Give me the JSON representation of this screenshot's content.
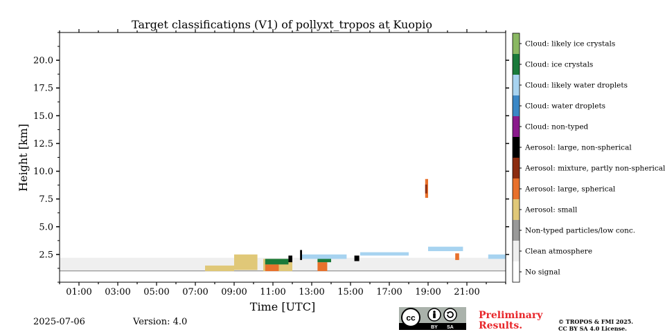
{
  "chart_data": {
    "type": "heatmap",
    "title": "Target classifications (V1) of pollyxt_tropos at Kuopio",
    "xlabel": "Time [UTC]",
    "ylabel": "Height [km]",
    "xlim_hours": [
      0,
      23
    ],
    "ylim_km": [
      0,
      22.5
    ],
    "x_ticks": [
      {
        "hour": 1,
        "label": "01:00"
      },
      {
        "hour": 3,
        "label": "03:00"
      },
      {
        "hour": 5,
        "label": "05:00"
      },
      {
        "hour": 7,
        "label": "07:00"
      },
      {
        "hour": 9,
        "label": "09:00"
      },
      {
        "hour": 11,
        "label": "11:00"
      },
      {
        "hour": 13,
        "label": "13:00"
      },
      {
        "hour": 15,
        "label": "15:00"
      },
      {
        "hour": 17,
        "label": "17:00"
      },
      {
        "hour": 19,
        "label": "19:00"
      },
      {
        "hour": 21,
        "label": "21:00"
      }
    ],
    "y_ticks": [
      {
        "value": 2.5,
        "label": "2.5"
      },
      {
        "value": 5.0,
        "label": "5.0"
      },
      {
        "value": 7.5,
        "label": "7.5"
      },
      {
        "value": 10.0,
        "label": "10.0"
      },
      {
        "value": 12.5,
        "label": "12.5"
      },
      {
        "value": 15.0,
        "label": "15.0"
      },
      {
        "value": 17.5,
        "label": "17.5"
      },
      {
        "value": 20.0,
        "label": "20.0"
      }
    ],
    "classes": [
      {
        "label": "No signal",
        "color": "#ffffff"
      },
      {
        "label": "Clean atmosphere",
        "color": "#efefef"
      },
      {
        "label": "Non-typed particles/low conc.",
        "color": "#999999"
      },
      {
        "label": "Aerosol: small",
        "color": "#e0c878"
      },
      {
        "label": "Aerosol: large, spherical",
        "color": "#e8712c"
      },
      {
        "label": "Aerosol: mixture, partly non-spherical",
        "color": "#8c2c10"
      },
      {
        "label": "Aerosol: large, non-spherical",
        "color": "#000000"
      },
      {
        "label": "Cloud: non-typed",
        "color": "#8a1a8c"
      },
      {
        "label": "Cloud: water droplets",
        "color": "#3a87c6"
      },
      {
        "label": "Cloud: likely water droplets",
        "color": "#a7d3f0"
      },
      {
        "label": "Cloud: ice crystals",
        "color": "#1a7a3a"
      },
      {
        "label": "Cloud: likely ice crystals",
        "color": "#8ab862"
      }
    ],
    "regions": [
      {
        "cls": 1,
        "t0": 0.0,
        "t1": 23.0,
        "h0": 1.0,
        "h1": 2.2
      },
      {
        "cls": 2,
        "t0": 0.0,
        "t1": 23.0,
        "h0": 0.98,
        "h1": 1.06
      },
      {
        "cls": 3,
        "t0": 7.5,
        "t1": 9.0,
        "h0": 1.0,
        "h1": 1.5
      },
      {
        "cls": 3,
        "t0": 9.0,
        "t1": 10.2,
        "h0": 1.1,
        "h1": 2.5
      },
      {
        "cls": 3,
        "t0": 10.5,
        "t1": 12.0,
        "h0": 1.0,
        "h1": 2.1
      },
      {
        "cls": 4,
        "t0": 10.6,
        "t1": 11.3,
        "h0": 1.0,
        "h1": 1.6
      },
      {
        "cls": 4,
        "t0": 13.3,
        "t1": 13.8,
        "h0": 1.0,
        "h1": 1.8
      },
      {
        "cls": 10,
        "t0": 10.6,
        "t1": 11.8,
        "h0": 1.6,
        "h1": 2.1
      },
      {
        "cls": 10,
        "t0": 13.3,
        "t1": 14.0,
        "h0": 1.8,
        "h1": 2.2
      },
      {
        "cls": 6,
        "t0": 11.8,
        "t1": 12.0,
        "h0": 1.8,
        "h1": 2.4
      },
      {
        "cls": 6,
        "t0": 12.4,
        "t1": 12.5,
        "h0": 2.0,
        "h1": 2.9
      },
      {
        "cls": 6,
        "t0": 15.2,
        "t1": 15.45,
        "h0": 1.9,
        "h1": 2.4
      },
      {
        "cls": 9,
        "t0": 12.5,
        "t1": 14.8,
        "h0": 2.1,
        "h1": 2.5
      },
      {
        "cls": 9,
        "t0": 15.5,
        "t1": 18.0,
        "h0": 2.4,
        "h1": 2.7
      },
      {
        "cls": 9,
        "t0": 19.0,
        "t1": 20.8,
        "h0": 2.8,
        "h1": 3.2
      },
      {
        "cls": 9,
        "t0": 22.1,
        "t1": 23.0,
        "h0": 2.1,
        "h1": 2.5
      },
      {
        "cls": 4,
        "t0": 18.85,
        "t1": 19.0,
        "h0": 7.6,
        "h1": 9.3
      },
      {
        "cls": 5,
        "t0": 18.85,
        "t1": 18.95,
        "h0": 8.0,
        "h1": 8.8
      },
      {
        "cls": 4,
        "t0": 20.4,
        "t1": 20.6,
        "h0": 2.0,
        "h1": 2.6
      }
    ]
  },
  "footer": {
    "date": "2025-07-06",
    "version": "Version: 4.0",
    "preliminary": [
      "Preliminary",
      "Results."
    ],
    "copyright": [
      "© TROPOS & FMI 2025.",
      "CC BY SA 4.0 License."
    ],
    "license_badge": {
      "cc": "cc",
      "by": "BY",
      "sa": "SA"
    }
  }
}
